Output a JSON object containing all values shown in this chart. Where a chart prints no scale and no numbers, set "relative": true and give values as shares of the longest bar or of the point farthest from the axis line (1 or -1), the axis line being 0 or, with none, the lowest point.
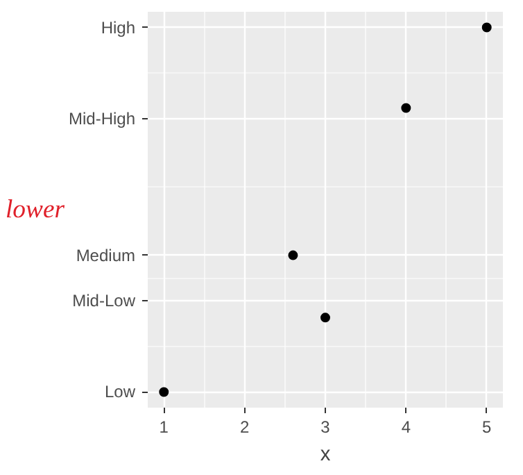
{
  "chart_data": {
    "type": "scatter",
    "xlabel": "x",
    "x": [
      1,
      2.6,
      3,
      4,
      5
    ],
    "values": [
      0,
      0.375,
      0.204,
      0.779,
      1
    ],
    "color": "#000000",
    "marker": "circle",
    "relative": true,
    "xlim": [
      0.8,
      5.2
    ],
    "xticks": [
      1,
      2,
      3,
      4,
      5
    ],
    "ref_lines": [
      {
        "axis": "y",
        "value": 0,
        "label": "Low"
      },
      {
        "axis": "y",
        "value": 0.25,
        "label": "Mid-Low"
      },
      {
        "axis": "y",
        "value": 0.375,
        "label": "Medium"
      },
      {
        "axis": "y",
        "value": 0.75,
        "label": "Mid-High"
      },
      {
        "axis": "y",
        "value": 1,
        "label": "High"
      }
    ],
    "grid": true,
    "annotations": [
      "lower"
    ]
  }
}
